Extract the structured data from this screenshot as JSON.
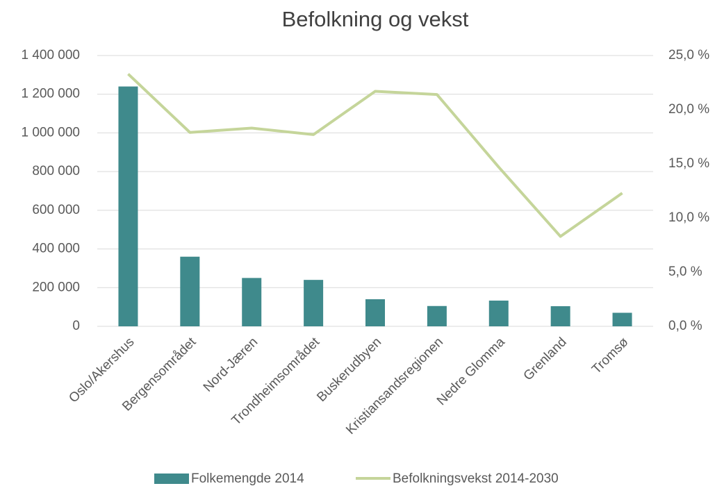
{
  "chart_data": {
    "type": "bar-line",
    "title": "Befolkning og vekst",
    "categories": [
      "Oslo/Akershus",
      "Bergensområdet",
      "Nord-Jæren",
      "Trondheimsområdet",
      "Buskerudbyen",
      "Kristiansandsregionen",
      "Nedre Glomma",
      "Grenland",
      "Tromsø"
    ],
    "series": [
      {
        "name": "Folkemengde 2014",
        "type": "bar",
        "color": "#3f8a8c",
        "values": [
          1240000,
          360000,
          250000,
          240000,
          140000,
          105000,
          133000,
          104000,
          70000
        ]
      },
      {
        "name": "Befolkningsvekst 2014-2030",
        "type": "line",
        "axis": "y2",
        "color": "#c5d59a",
        "values": [
          23.3,
          17.9,
          18.3,
          17.7,
          21.7,
          21.4,
          14.7,
          8.3,
          12.3
        ]
      }
    ],
    "ylim": [
      0,
      1400000
    ],
    "yticks": [
      0,
      {
        "value": 200000,
        "label": "200 000"
      },
      {
        "value": 400000,
        "label": "400 000"
      },
      {
        "value": 600000,
        "label": "600 000"
      },
      {
        "value": 800000,
        "label": "800 000"
      },
      {
        "value": 1000000,
        "label": "1 000 000"
      },
      {
        "value": 1200000,
        "label": "1 200 000"
      },
      {
        "value": 1400000,
        "label": "1 400 000"
      }
    ],
    "y2lim": [
      0,
      25
    ],
    "y2ticks": [
      {
        "value": 0,
        "label": "0,0 %"
      },
      {
        "value": 5,
        "label": "5,0 %"
      },
      {
        "value": 10,
        "label": "10,0 %"
      },
      {
        "value": 15,
        "label": "15,0 %"
      },
      {
        "value": 20,
        "label": "20,0 %"
      },
      {
        "value": 25,
        "label": "25,0 %"
      }
    ],
    "grid": true,
    "legend": "bottom"
  }
}
